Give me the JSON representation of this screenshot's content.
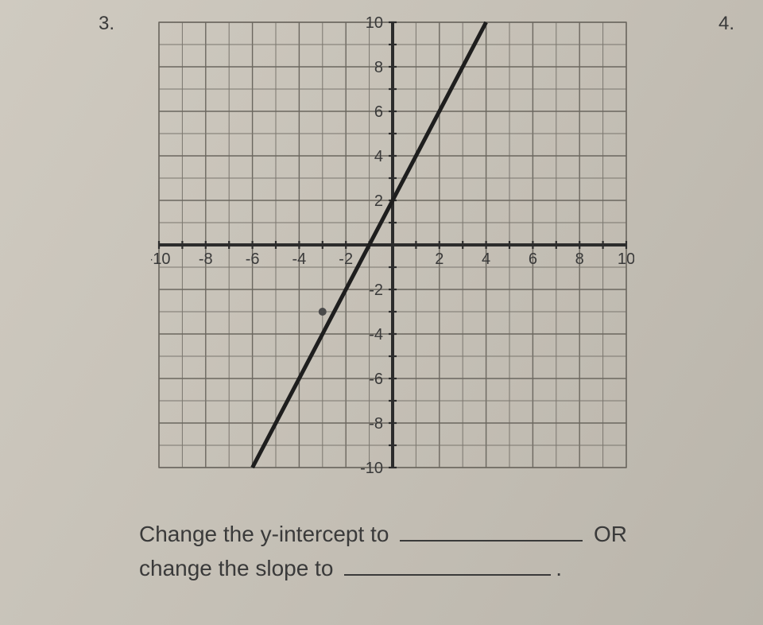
{
  "question_left_number": "3.",
  "question_right_number": "4.",
  "graph": {
    "type": "line",
    "xlim": [
      -10,
      10
    ],
    "ylim": [
      -10,
      10
    ],
    "xtick_step": 2,
    "ytick_step": 2,
    "grid_step": 1,
    "x_tick_labels": [
      "-10",
      "-8",
      "-6",
      "-4",
      "-2",
      "2",
      "4",
      "6",
      "8",
      "10"
    ],
    "y_tick_labels_pos": [
      "2",
      "4",
      "6",
      "8",
      "10"
    ],
    "y_tick_labels_neg": [
      "-2",
      "-4",
      "-6",
      "-8",
      "-10"
    ],
    "line_slope": 2,
    "line_y_intercept": 2,
    "line_points": [
      [
        -6,
        -10
      ],
      [
        4,
        10
      ]
    ],
    "extra_point": [
      -3,
      -3
    ],
    "axis_color": "#2c2c2c",
    "grid_color": "#7a766e",
    "line_color": "#1e1e1e",
    "background_color": "#c8c3ba",
    "line_width": 5,
    "label_fontsize": 20
  },
  "prompt": {
    "line1_before": "Change the y-intercept to",
    "line1_after": "OR",
    "line2_before": "change the slope to",
    "line2_after": "."
  }
}
